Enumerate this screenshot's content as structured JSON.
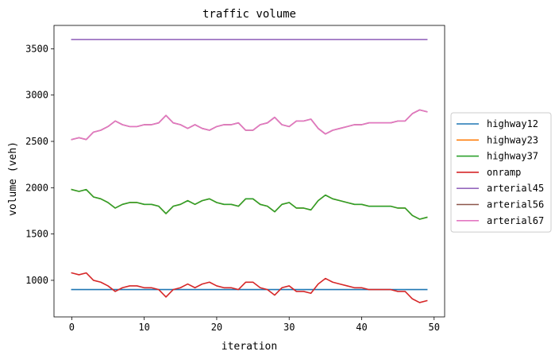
{
  "chart_data": {
    "type": "line",
    "title": "traffic volume",
    "xlabel": "iteration",
    "ylabel": "volume (veh)",
    "xlim": [
      -2.45,
      51.45
    ],
    "ylim": [
      605,
      3752
    ],
    "xticks": [
      0,
      10,
      20,
      30,
      40,
      50
    ],
    "yticks": [
      1000,
      1500,
      2000,
      2500,
      3000,
      3500
    ],
    "grid": false,
    "legend_position": "center-right-outside",
    "x": [
      0,
      1,
      2,
      3,
      4,
      5,
      6,
      7,
      8,
      9,
      10,
      11,
      12,
      13,
      14,
      15,
      16,
      17,
      18,
      19,
      20,
      21,
      22,
      23,
      24,
      25,
      26,
      27,
      28,
      29,
      30,
      31,
      32,
      33,
      34,
      35,
      36,
      37,
      38,
      39,
      40,
      41,
      42,
      43,
      44,
      45,
      46,
      47,
      48,
      49
    ],
    "series": [
      {
        "name": "highway12",
        "color": "#1f77b4",
        "values": [
          900,
          900,
          900,
          900,
          900,
          900,
          900,
          900,
          900,
          900,
          900,
          900,
          900,
          900,
          900,
          900,
          900,
          900,
          900,
          900,
          900,
          900,
          900,
          900,
          900,
          900,
          900,
          900,
          900,
          900,
          900,
          900,
          900,
          900,
          900,
          900,
          900,
          900,
          900,
          900,
          900,
          900,
          900,
          900,
          900,
          900,
          900,
          900,
          900,
          900
        ]
      },
      {
        "name": "highway23",
        "color": "#ff7f0e",
        "values": [
          1980,
          1960,
          1980,
          1900,
          1880,
          1840,
          1780,
          1820,
          1840,
          1840,
          1820,
          1820,
          1800,
          1720,
          1800,
          1820,
          1860,
          1820,
          1860,
          1880,
          1840,
          1820,
          1820,
          1800,
          1880,
          1880,
          1820,
          1800,
          1740,
          1820,
          1840,
          1780,
          1780,
          1760,
          1860,
          1920,
          1880,
          1860,
          1840,
          1820,
          1820,
          1800,
          1800,
          1800,
          1800,
          1780,
          1780,
          1700,
          1660,
          1680
        ]
      },
      {
        "name": "highway37",
        "color": "#2ca02c",
        "values": [
          1980,
          1960,
          1980,
          1900,
          1880,
          1840,
          1780,
          1820,
          1840,
          1840,
          1820,
          1820,
          1800,
          1720,
          1800,
          1820,
          1860,
          1820,
          1860,
          1880,
          1840,
          1820,
          1820,
          1800,
          1880,
          1880,
          1820,
          1800,
          1740,
          1820,
          1840,
          1780,
          1780,
          1760,
          1860,
          1920,
          1880,
          1860,
          1840,
          1820,
          1820,
          1800,
          1800,
          1800,
          1800,
          1780,
          1780,
          1700,
          1660,
          1680
        ]
      },
      {
        "name": "onramp",
        "color": "#d62728",
        "values": [
          1080,
          1060,
          1080,
          1000,
          980,
          940,
          880,
          920,
          940,
          940,
          920,
          920,
          900,
          820,
          900,
          920,
          960,
          920,
          960,
          980,
          940,
          920,
          920,
          900,
          980,
          980,
          920,
          900,
          840,
          920,
          940,
          880,
          880,
          860,
          960,
          1020,
          980,
          960,
          940,
          920,
          920,
          900,
          900,
          900,
          900,
          880,
          880,
          800,
          760,
          780
        ]
      },
      {
        "name": "arterial45",
        "color": "#9467bd",
        "values": [
          3600,
          3600,
          3600,
          3600,
          3600,
          3600,
          3600,
          3600,
          3600,
          3600,
          3600,
          3600,
          3600,
          3600,
          3600,
          3600,
          3600,
          3600,
          3600,
          3600,
          3600,
          3600,
          3600,
          3600,
          3600,
          3600,
          3600,
          3600,
          3600,
          3600,
          3600,
          3600,
          3600,
          3600,
          3600,
          3600,
          3600,
          3600,
          3600,
          3600,
          3600,
          3600,
          3600,
          3600,
          3600,
          3600,
          3600,
          3600,
          3600,
          3600
        ]
      },
      {
        "name": "arterial56",
        "color": "#8c564b",
        "values": [
          2520,
          2540,
          2520,
          2600,
          2620,
          2660,
          2720,
          2680,
          2660,
          2660,
          2680,
          2680,
          2700,
          2780,
          2700,
          2680,
          2640,
          2680,
          2640,
          2620,
          2660,
          2680,
          2680,
          2700,
          2620,
          2620,
          2680,
          2700,
          2760,
          2680,
          2660,
          2720,
          2720,
          2740,
          2640,
          2580,
          2620,
          2640,
          2660,
          2680,
          2680,
          2700,
          2700,
          2700,
          2700,
          2720,
          2720,
          2800,
          2840,
          2820
        ]
      },
      {
        "name": "arterial67",
        "color": "#e377c2",
        "values": [
          2520,
          2540,
          2520,
          2600,
          2620,
          2660,
          2720,
          2680,
          2660,
          2660,
          2680,
          2680,
          2700,
          2780,
          2700,
          2680,
          2640,
          2680,
          2640,
          2620,
          2660,
          2680,
          2680,
          2700,
          2620,
          2620,
          2680,
          2700,
          2760,
          2680,
          2660,
          2720,
          2720,
          2740,
          2640,
          2580,
          2620,
          2640,
          2660,
          2680,
          2680,
          2700,
          2700,
          2700,
          2700,
          2720,
          2720,
          2800,
          2840,
          2820
        ]
      }
    ]
  }
}
